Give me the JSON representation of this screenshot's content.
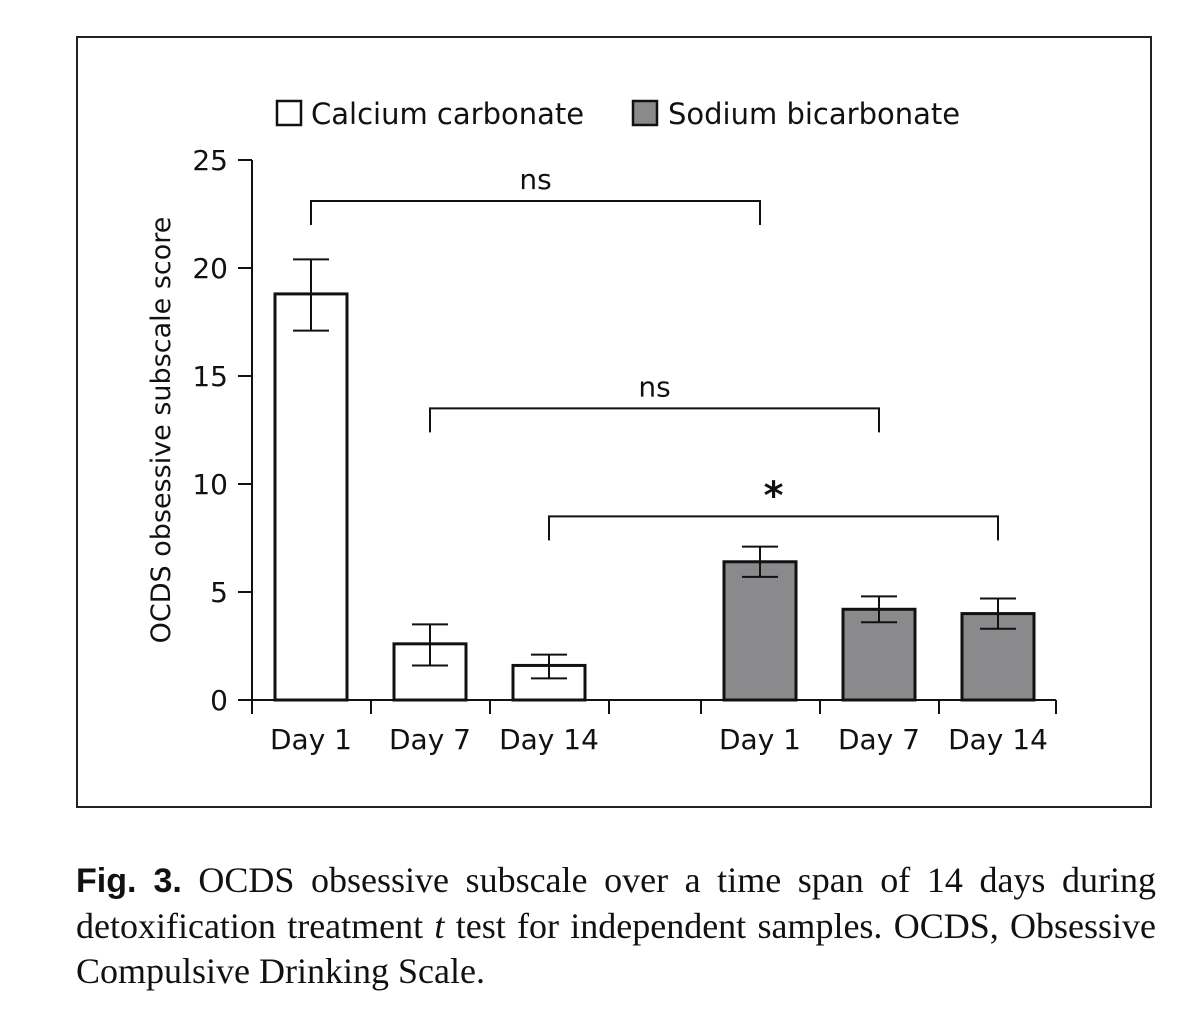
{
  "chart_data": {
    "type": "bar",
    "ylabel": "OCDS obsessive subscale score",
    "xlabel": "",
    "ylim": [
      0,
      25
    ],
    "yticks": [
      "0",
      "5",
      "10",
      "15",
      "20",
      "25"
    ],
    "yticks_values": [
      0,
      5,
      10,
      15,
      20,
      25
    ],
    "legend_position": "top",
    "colors": {
      "calcium": "#ffffff",
      "sodium": "#8a8a8c",
      "stroke": "#111111"
    },
    "series": [
      {
        "name": "Calcium carbonate",
        "categories": [
          "Day 1",
          "Day 7",
          "Day 14"
        ],
        "values": [
          18.8,
          2.6,
          1.6
        ],
        "err_high": [
          20.4,
          3.5,
          2.1
        ],
        "err_low": [
          17.1,
          1.6,
          1.0
        ]
      },
      {
        "name": "Sodium bicarbonate",
        "categories": [
          "Day 1",
          "Day 7",
          "Day 14"
        ],
        "values": [
          6.4,
          4.2,
          4.0
        ],
        "err_high": [
          7.1,
          4.8,
          4.7
        ],
        "err_low": [
          5.7,
          3.6,
          3.3
        ]
      }
    ],
    "comparisons": [
      {
        "label": "ns",
        "from": "Calcium carbonate Day 1",
        "to": "Sodium bicarbonate Day 1",
        "level": 23.1
      },
      {
        "label": "ns",
        "from": "Calcium carbonate Day 7",
        "to": "Sodium bicarbonate Day 7",
        "level": 13.5
      },
      {
        "label": "*",
        "from": "Calcium carbonate Day 14",
        "to": "Sodium bicarbonate Day 14",
        "level": 8.5
      }
    ]
  },
  "caption": {
    "lead": "Fig. 3.",
    "text_1": " OCDS obsessive subscale over a time span of 14 days during detoxification treatment ",
    "italic": "t",
    "text_2": " test for independent samples. OCDS, Obsessive Compulsive Drinking Scale."
  }
}
